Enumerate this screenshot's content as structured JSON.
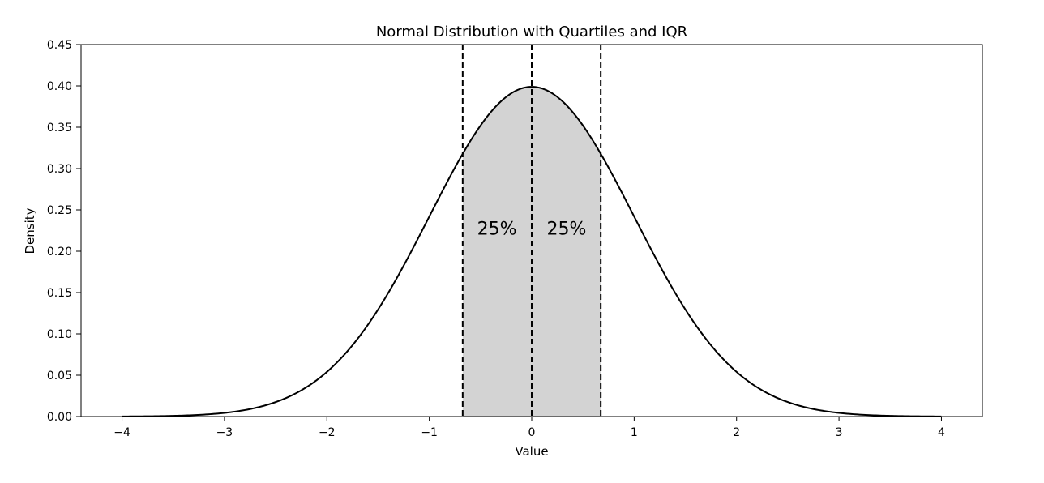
{
  "chart_data": {
    "type": "area",
    "title": "Normal Distribution with Quartiles and IQR",
    "xlabel": "Value",
    "ylabel": "Density",
    "xlim": [
      -4.4,
      4.4
    ],
    "ylim": [
      0,
      0.45
    ],
    "grid": false,
    "legend": "none",
    "curve": {
      "distribution": "standard normal",
      "mean": 0,
      "sd": 1,
      "x_range": [
        -4,
        4
      ],
      "color": "#000000"
    },
    "shaded_region": {
      "x_from": -0.674,
      "x_to": 0.674,
      "color": "#d3d3d3"
    },
    "vlines": [
      {
        "x": -0.674,
        "style": "dashed",
        "color": "#000000"
      },
      {
        "x": 0,
        "style": "dashed",
        "color": "#000000"
      },
      {
        "x": 0.674,
        "style": "dashed",
        "color": "#000000"
      }
    ],
    "annotations": [
      {
        "text": "25%",
        "x": -0.34,
        "y": 0.22
      },
      {
        "text": "25%",
        "x": 0.34,
        "y": 0.22
      }
    ],
    "xticks": [
      -4,
      -3,
      -2,
      -1,
      0,
      1,
      2,
      3,
      4
    ],
    "xtick_labels": [
      "−4",
      "−3",
      "−2",
      "−1",
      "0",
      "1",
      "2",
      "3",
      "4"
    ],
    "yticks": [
      0,
      0.05,
      0.1,
      0.15,
      0.2,
      0.25,
      0.3,
      0.35,
      0.4,
      0.45
    ],
    "ytick_labels": [
      "0.00",
      "0.05",
      "0.10",
      "0.15",
      "0.20",
      "0.25",
      "0.30",
      "0.35",
      "0.40",
      "0.45"
    ]
  }
}
